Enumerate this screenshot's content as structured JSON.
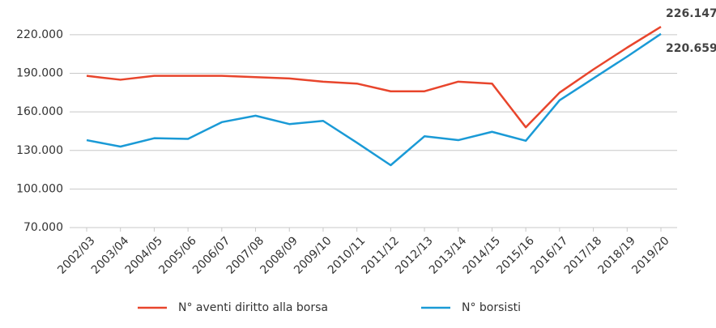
{
  "chart_data": {
    "type": "line",
    "categories": [
      "2002/03",
      "2003/04",
      "2004/05",
      "2005/06",
      "2006/07",
      "2007/08",
      "2008/09",
      "2009/10",
      "2010/11",
      "2011/12",
      "2012/13",
      "2013/14",
      "2014/15",
      "2015/16",
      "2016/17",
      "2017/18",
      "2018/19",
      "2019/20"
    ],
    "series": [
      {
        "name": "N° aventi diritto alla borsa",
        "color": "#e8452c",
        "values": [
          188000,
          185000,
          188000,
          188000,
          188000,
          187000,
          186000,
          183500,
          182000,
          176000,
          176000,
          183500,
          182000,
          148000,
          175000,
          193000,
          210000,
          226147
        ],
        "value_labels": [
          null,
          null,
          null,
          null,
          null,
          null,
          null,
          null,
          null,
          null,
          null,
          null,
          null,
          null,
          null,
          null,
          null,
          "226.147"
        ]
      },
      {
        "name": "N° borsisti",
        "color": "#1a9ad6",
        "values": [
          138000,
          133000,
          139500,
          139000,
          152000,
          157000,
          150500,
          153000,
          136000,
          118500,
          141000,
          138000,
          144500,
          137500,
          169000,
          186000,
          203000,
          220659
        ],
        "value_labels": [
          null,
          null,
          null,
          null,
          null,
          null,
          null,
          null,
          null,
          null,
          null,
          null,
          null,
          null,
          null,
          null,
          null,
          "220.659"
        ]
      }
    ],
    "ylim": [
      70000,
      230000
    ],
    "yticks": [
      {
        "value": 70000,
        "label": "70.000"
      },
      {
        "value": 100000,
        "label": "100.000"
      },
      {
        "value": 130000,
        "label": "130.000"
      },
      {
        "value": 160000,
        "label": "160.000"
      },
      {
        "value": 190000,
        "label": "190.000"
      },
      {
        "value": 220000,
        "label": "220.000"
      }
    ],
    "grid": true,
    "legend": "bottom"
  }
}
